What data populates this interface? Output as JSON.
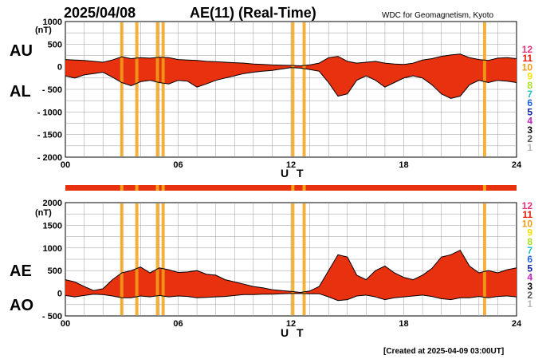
{
  "header": {
    "date": "2025/04/08",
    "title": "AE(11) (Real-Time)",
    "source": "WDC for Geomagnetism, Kyoto",
    "created": "[Created at 2025-04-09 03:00UT]"
  },
  "legend": [
    {
      "label": "12",
      "color": "#e8307a"
    },
    {
      "label": "11",
      "color": "#e8200f"
    },
    {
      "label": "10",
      "color": "#f39c12"
    },
    {
      "label": "9",
      "color": "#f5e100"
    },
    {
      "label": "8",
      "color": "#a8e020"
    },
    {
      "label": "7",
      "color": "#20c0c0"
    },
    {
      "label": "6",
      "color": "#2060e0"
    },
    {
      "label": "5",
      "color": "#1020a0"
    },
    {
      "label": "4",
      "color": "#c020c0"
    },
    {
      "label": "3",
      "color": "#000000"
    },
    {
      "label": "2",
      "color": "#555555"
    },
    {
      "label": "1",
      "color": "#bbbbbb"
    }
  ],
  "colors": {
    "fill": "#e8310f",
    "partial": "#f2a31a",
    "line": "#000000"
  },
  "chart_data": [
    {
      "type": "area",
      "name": "AU/AL",
      "upper_label": "AU",
      "lower_label": "AL",
      "ylabel": "(nT)",
      "xlabel": "U T",
      "xlim": [
        0,
        24
      ],
      "ylim": [
        -2000,
        1000
      ],
      "yticks": [
        "1000",
        "500",
        "0",
        "- 500",
        "- 1000",
        "- 1500",
        "- 2000"
      ],
      "xtick_labels": [
        "00",
        "06",
        "12",
        "18",
        "24"
      ],
      "x": [
        0,
        0.5,
        1,
        1.5,
        2,
        2.5,
        3,
        3.5,
        4,
        4.5,
        5,
        5.5,
        6,
        6.5,
        7,
        7.5,
        8,
        8.5,
        9,
        9.5,
        10,
        10.5,
        11,
        11.5,
        12,
        12.5,
        13,
        13.5,
        14,
        14.5,
        15,
        15.5,
        16,
        16.5,
        17,
        17.5,
        18,
        18.5,
        19,
        19.5,
        20,
        20.5,
        21,
        21.5,
        22,
        22.5,
        23,
        23.5,
        24
      ],
      "series": [
        {
          "name": "AU",
          "values": [
            160,
            150,
            140,
            120,
            100,
            150,
            220,
            180,
            200,
            190,
            210,
            200,
            160,
            150,
            140,
            120,
            110,
            100,
            90,
            80,
            60,
            50,
            40,
            35,
            30,
            20,
            40,
            80,
            200,
            230,
            120,
            80,
            100,
            120,
            80,
            60,
            50,
            80,
            150,
            180,
            230,
            260,
            280,
            200,
            160,
            140,
            190,
            200,
            180
          ]
        },
        {
          "name": "AL",
          "values": [
            -200,
            -250,
            -180,
            -150,
            -120,
            -230,
            -350,
            -420,
            -330,
            -300,
            -350,
            -380,
            -300,
            -320,
            -450,
            -380,
            -300,
            -250,
            -200,
            -150,
            -120,
            -100,
            -80,
            -50,
            -20,
            -30,
            -60,
            -100,
            -350,
            -650,
            -600,
            -300,
            -200,
            -300,
            -450,
            -350,
            -250,
            -200,
            -250,
            -400,
            -600,
            -700,
            -650,
            -400,
            -300,
            -350,
            -300,
            -320,
            -350
          ]
        }
      ],
      "partial_hours": [
        3.0,
        3.8,
        4.9,
        5.2,
        12.1,
        12.7,
        22.3
      ]
    },
    {
      "type": "area",
      "name": "AE/AO",
      "upper_label": "AE",
      "lower_label": "AO",
      "ylabel": "(nT)",
      "xlabel": "U T",
      "xlim": [
        0,
        24
      ],
      "ylim": [
        -500,
        2000
      ],
      "yticks": [
        "2000",
        "1500",
        "1000",
        "500",
        "0",
        "- 500"
      ],
      "xtick_labels": [
        "00",
        "06",
        "12",
        "18",
        "24"
      ],
      "x": [
        0,
        0.5,
        1,
        1.5,
        2,
        2.5,
        3,
        3.5,
        4,
        4.5,
        5,
        5.5,
        6,
        6.5,
        7,
        7.5,
        8,
        8.5,
        9,
        9.5,
        10,
        10.5,
        11,
        11.5,
        12,
        12.5,
        13,
        13.5,
        14,
        14.5,
        15,
        15.5,
        16,
        16.5,
        17,
        17.5,
        18,
        18.5,
        19,
        19.5,
        20,
        20.5,
        21,
        21.5,
        22,
        22.5,
        23,
        23.5,
        24
      ],
      "series": [
        {
          "name": "AE",
          "values": [
            300,
            250,
            150,
            60,
            100,
            300,
            450,
            500,
            580,
            450,
            560,
            520,
            460,
            470,
            500,
            420,
            400,
            300,
            250,
            200,
            150,
            120,
            80,
            60,
            40,
            20,
            50,
            150,
            500,
            850,
            800,
            400,
            300,
            500,
            600,
            450,
            350,
            300,
            400,
            550,
            800,
            850,
            950,
            600,
            450,
            500,
            450,
            520,
            560
          ]
        },
        {
          "name": "AO",
          "values": [
            -50,
            -80,
            -50,
            -20,
            -30,
            -60,
            -100,
            -100,
            -60,
            -80,
            -50,
            -80,
            -60,
            -70,
            -100,
            -90,
            -80,
            -70,
            -50,
            -30,
            -30,
            -20,
            -20,
            -10,
            -5,
            -5,
            -10,
            -10,
            -80,
            -160,
            -140,
            -60,
            -40,
            -80,
            -140,
            -100,
            -80,
            -60,
            -40,
            -70,
            -120,
            -140,
            -100,
            -100,
            -70,
            -100,
            -70,
            -60,
            -80
          ]
        }
      ],
      "partial_hours": [
        3.0,
        3.8,
        4.9,
        5.2,
        12.1,
        12.7,
        22.3
      ]
    }
  ]
}
